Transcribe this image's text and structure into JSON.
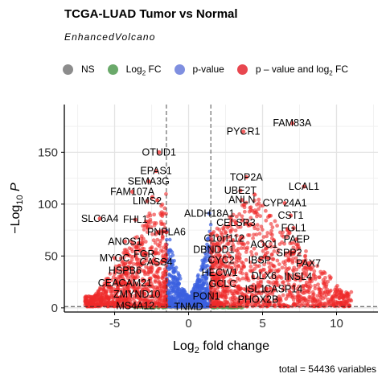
{
  "chart_data": {
    "type": "scatter",
    "title": "TCGA-LUAD Tumor vs Normal",
    "subtitle": "EnhancedVolcano",
    "xlabel": "Log2 fold change",
    "ylabel": "−Log10 P",
    "caption": "total = 54436 variables",
    "xlim": [
      -8.4,
      12.8
    ],
    "ylim": [
      -4,
      196
    ],
    "xticks": [
      -5,
      0,
      5,
      10
    ],
    "yticks": [
      0,
      50,
      100,
      150
    ],
    "fc_cutoff": 1.5,
    "p_cutoff_y": 1.3,
    "grid": true,
    "legend_position": "top",
    "legend": [
      {
        "key": "NS",
        "label_main": "NS",
        "label_sub": "",
        "label_tail": "",
        "color": "#8c8c8c"
      },
      {
        "key": "FC",
        "label_main": "Log",
        "label_sub": "2",
        "label_tail": " FC",
        "color": "#6aa96a"
      },
      {
        "key": "P",
        "label_main": "p-value",
        "label_sub": "",
        "label_tail": "",
        "color": "#7f8fe0"
      },
      {
        "key": "PFC",
        "label_main": "p – value and log",
        "label_sub": "2",
        "label_tail": " FC",
        "color": "#e8474f"
      }
    ],
    "colors": {
      "NS": "#8c8c8c",
      "FC": "#4f9a4f",
      "P": "#3b5fe0",
      "PFC": "#ee2a2a"
    },
    "labeled_points": [
      {
        "gene": "FAM83A",
        "x": 7.0,
        "y": 178
      },
      {
        "gene": "PYCR1",
        "x": 3.7,
        "y": 170
      },
      {
        "gene": "OTUD1",
        "x": -2.0,
        "y": 150
      },
      {
        "gene": "EPAS1",
        "x": -2.2,
        "y": 132
      },
      {
        "gene": "TOP2A",
        "x": 3.9,
        "y": 126
      },
      {
        "gene": "SEMA3G",
        "x": -2.7,
        "y": 122
      },
      {
        "gene": "LCAL1",
        "x": 7.8,
        "y": 117
      },
      {
        "gene": "UBE2T",
        "x": 3.5,
        "y": 113
      },
      {
        "gene": "FAM107A",
        "x": -3.8,
        "y": 112
      },
      {
        "gene": "ANLN",
        "x": 3.6,
        "y": 104
      },
      {
        "gene": "LIMS2",
        "x": -2.8,
        "y": 103
      },
      {
        "gene": "CYP24A1",
        "x": 6.5,
        "y": 101
      },
      {
        "gene": "ALDH18A1",
        "x": 1.4,
        "y": 91
      },
      {
        "gene": "CST1",
        "x": 6.9,
        "y": 89
      },
      {
        "gene": "SLC6A4",
        "x": -6.0,
        "y": 86
      },
      {
        "gene": "FHL1",
        "x": -3.6,
        "y": 85
      },
      {
        "gene": "CELSR3",
        "x": 3.2,
        "y": 82
      },
      {
        "gene": "FGL1",
        "x": 7.1,
        "y": 77
      },
      {
        "gene": "PNPLA6",
        "x": -1.5,
        "y": 73
      },
      {
        "gene": "C1orf112",
        "x": 2.4,
        "y": 67
      },
      {
        "gene": "PAEP",
        "x": 7.3,
        "y": 66
      },
      {
        "gene": "ANOS1",
        "x": -4.3,
        "y": 64
      },
      {
        "gene": "AOC1",
        "x": 5.1,
        "y": 61
      },
      {
        "gene": "DBNDD1",
        "x": 1.7,
        "y": 56
      },
      {
        "gene": "SPP2",
        "x": 6.8,
        "y": 53
      },
      {
        "gene": "FGR",
        "x": -3.0,
        "y": 52
      },
      {
        "gene": "MYOC",
        "x": -5.0,
        "y": 48
      },
      {
        "gene": "IBSP",
        "x": 4.8,
        "y": 46
      },
      {
        "gene": "CASS4",
        "x": -2.2,
        "y": 44
      },
      {
        "gene": "CYC2",
        "x": 2.2,
        "y": 46
      },
      {
        "gene": "PAX7",
        "x": 8.1,
        "y": 43
      },
      {
        "gene": "HSPB6",
        "x": -4.3,
        "y": 36
      },
      {
        "gene": "HECW1",
        "x": 2.1,
        "y": 34
      },
      {
        "gene": "DLX6",
        "x": 5.1,
        "y": 31
      },
      {
        "gene": "INSL4",
        "x": 7.4,
        "y": 30
      },
      {
        "gene": "CEACAM21",
        "x": -4.3,
        "y": 24
      },
      {
        "gene": "GCLC",
        "x": 2.3,
        "y": 23
      },
      {
        "gene": "CASP14",
        "x": 6.4,
        "y": 18
      },
      {
        "gene": "ZMYND10",
        "x": -3.5,
        "y": 13
      },
      {
        "gene": "ISL1",
        "x": 4.5,
        "y": 18
      },
      {
        "gene": "PON1",
        "x": 1.2,
        "y": 11
      },
      {
        "gene": "PHOX2B",
        "x": 4.7,
        "y": 8
      },
      {
        "gene": "MS4A12",
        "x": -3.6,
        "y": 2
      },
      {
        "gene": "TNMD",
        "x": 0.0,
        "y": 1
      }
    ]
  }
}
